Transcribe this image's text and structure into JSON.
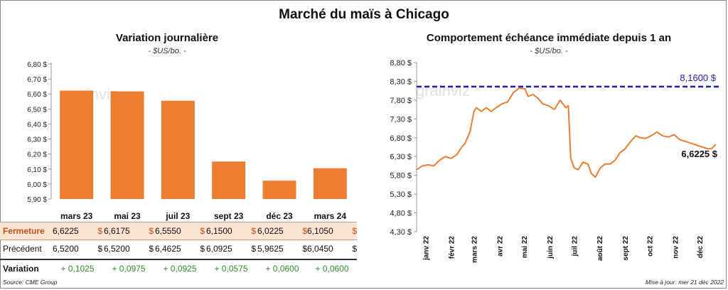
{
  "main_title": "Marché du maïs à Chicago",
  "left_chart": {
    "subtitle": "Variation  journalière",
    "unit": "- $US/bo. -"
  },
  "right_chart": {
    "subtitle": "Comportement  échéance  immédiate  depuis  1  an",
    "unit": "- $US/bo. -"
  },
  "watermark": "grainviz",
  "chart_data": [
    {
      "type": "bar",
      "title": "Variation  journalière",
      "ylabel": "$US/bo.",
      "categories": [
        "mars 23",
        "mai 23",
        "juil 23",
        "sept 23",
        "déc 23",
        "mars 24"
      ],
      "values": [
        6.6225,
        6.6175,
        6.555,
        6.15,
        6.0225,
        6.105
      ],
      "ylim": [
        5.9,
        6.8
      ],
      "yticks": [
        "5,90 $",
        "6,00 $",
        "6,10 $",
        "6,20 $",
        "6,30 $",
        "6,40 $",
        "6,50 $",
        "6,60 $",
        "6,70 $",
        "6,80 $"
      ],
      "ytick_values": [
        5.9,
        6.0,
        6.1,
        6.2,
        6.3,
        6.4,
        6.5,
        6.6,
        6.7,
        6.8
      ],
      "color": "#ed7d31",
      "grid": false
    },
    {
      "type": "line",
      "title": "Comportement  échéance  immédiate  depuis  1  an",
      "ylabel": "$US/bo.",
      "x_start": "2021-12-21",
      "x_end": "2022-12-21",
      "xticks": [
        "janv 22",
        "févr 22",
        "mars 22",
        "avr 22",
        "mai 22",
        "juin 22",
        "juil 22",
        "août 22",
        "sept 22",
        "oct 22",
        "nov 22",
        "déc 22"
      ],
      "xtick_dates": [
        "2022-01-01",
        "2022-02-01",
        "2022-03-01",
        "2022-04-01",
        "2022-05-01",
        "2022-06-01",
        "2022-07-01",
        "2022-08-01",
        "2022-09-01",
        "2022-10-01",
        "2022-11-01",
        "2022-12-01"
      ],
      "ylim": [
        4.3,
        8.8
      ],
      "yticks": [
        "4,30 $",
        "4,80 $",
        "5,30 $",
        "5,80 $",
        "6,30 $",
        "6,80 $",
        "7,30 $",
        "7,80 $",
        "8,30 $",
        "8,80 $"
      ],
      "ytick_values": [
        4.3,
        4.8,
        5.3,
        5.8,
        6.3,
        6.8,
        7.3,
        7.8,
        8.3,
        8.8
      ],
      "series": [
        {
          "color": "#ed7d31",
          "points": [
            [
              "2021-12-21",
              5.95
            ],
            [
              "2021-12-28",
              6.05
            ],
            [
              "2022-01-04",
              6.08
            ],
            [
              "2022-01-11",
              6.05
            ],
            [
              "2022-01-18",
              6.2
            ],
            [
              "2022-01-25",
              6.3
            ],
            [
              "2022-02-01",
              6.25
            ],
            [
              "2022-02-08",
              6.35
            ],
            [
              "2022-02-14",
              6.55
            ],
            [
              "2022-02-18",
              6.65
            ],
            [
              "2022-02-24",
              6.95
            ],
            [
              "2022-03-01",
              7.5
            ],
            [
              "2022-03-04",
              7.6
            ],
            [
              "2022-03-10",
              7.5
            ],
            [
              "2022-03-16",
              7.6
            ],
            [
              "2022-03-22",
              7.5
            ],
            [
              "2022-03-28",
              7.6
            ],
            [
              "2022-04-04",
              7.7
            ],
            [
              "2022-04-11",
              7.75
            ],
            [
              "2022-04-18",
              8.0
            ],
            [
              "2022-04-25",
              8.12
            ],
            [
              "2022-05-02",
              8.1
            ],
            [
              "2022-05-06",
              7.9
            ],
            [
              "2022-05-12",
              7.95
            ],
            [
              "2022-05-18",
              7.85
            ],
            [
              "2022-05-24",
              7.7
            ],
            [
              "2022-05-31",
              7.65
            ],
            [
              "2022-06-07",
              7.55
            ],
            [
              "2022-06-14",
              7.8
            ],
            [
              "2022-06-21",
              7.6
            ],
            [
              "2022-06-24",
              7.65
            ],
            [
              "2022-06-27",
              6.25
            ],
            [
              "2022-07-01",
              6.0
            ],
            [
              "2022-07-06",
              5.95
            ],
            [
              "2022-07-12",
              6.15
            ],
            [
              "2022-07-18",
              6.1
            ],
            [
              "2022-07-22",
              5.85
            ],
            [
              "2022-07-27",
              5.75
            ],
            [
              "2022-08-02",
              6.0
            ],
            [
              "2022-08-08",
              6.1
            ],
            [
              "2022-08-14",
              6.1
            ],
            [
              "2022-08-20",
              6.2
            ],
            [
              "2022-08-26",
              6.4
            ],
            [
              "2022-09-01",
              6.5
            ],
            [
              "2022-09-08",
              6.7
            ],
            [
              "2022-09-14",
              6.85
            ],
            [
              "2022-09-20",
              6.8
            ],
            [
              "2022-09-26",
              6.78
            ],
            [
              "2022-10-03",
              6.85
            ],
            [
              "2022-10-10",
              6.95
            ],
            [
              "2022-10-17",
              6.85
            ],
            [
              "2022-10-24",
              6.82
            ],
            [
              "2022-10-31",
              6.88
            ],
            [
              "2022-11-07",
              6.75
            ],
            [
              "2022-11-14",
              6.7
            ],
            [
              "2022-11-21",
              6.65
            ],
            [
              "2022-11-28",
              6.6
            ],
            [
              "2022-12-05",
              6.55
            ],
            [
              "2022-12-12",
              6.5
            ],
            [
              "2022-12-16",
              6.52
            ],
            [
              "2022-12-21",
              6.6225
            ]
          ]
        }
      ],
      "reference_line": {
        "value": 8.16,
        "label": "8,1600 $",
        "color": "#1f1fa8",
        "style": "dashed"
      },
      "last_value_label": "6,6225 $",
      "grid": false
    }
  ],
  "table": {
    "rows": [
      {
        "label": "Fermeture",
        "values": [
          [
            "6,6225",
            "$"
          ],
          [
            "6,6175",
            "$"
          ],
          [
            "6,5550",
            "$"
          ],
          [
            "6,1500",
            "$"
          ],
          [
            "6,0225",
            "$"
          ],
          [
            "6,1050",
            "$"
          ]
        ]
      },
      {
        "label": "Précédent",
        "values": [
          [
            "6,5200",
            "$"
          ],
          [
            "6,5200",
            "$"
          ],
          [
            "6,4625",
            "$"
          ],
          [
            "6,0925",
            "$"
          ],
          [
            "5,9625",
            "$"
          ],
          [
            "6,0450",
            "$"
          ]
        ]
      },
      {
        "label": "Variation",
        "values": [
          "+ 0,1025",
          "+ 0,0975",
          "+ 0,0925",
          "+ 0,0575",
          "+ 0,0600",
          "+ 0,0600"
        ]
      }
    ]
  },
  "footer": {
    "source": "Source: CME Group",
    "updated": "Mise à jour: mer 21 déc 2022"
  }
}
